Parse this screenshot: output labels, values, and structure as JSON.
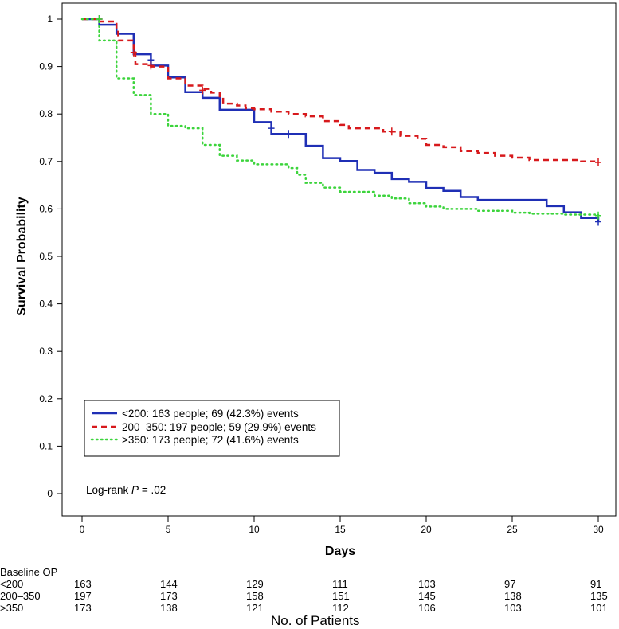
{
  "chart_data": {
    "type": "line",
    "subtype": "kaplan-meier",
    "xlabel": "Days",
    "ylabel": "Survival Probability",
    "xlim": [
      0,
      30
    ],
    "ylim": [
      0,
      1
    ],
    "xticks": [
      0,
      5,
      10,
      15,
      20,
      25,
      30
    ],
    "yticks": [
      0,
      0.1,
      0.2,
      0.3,
      0.4,
      0.5,
      0.6,
      0.7,
      0.8,
      0.9,
      1
    ],
    "legend_position": "lower-left",
    "annotation": {
      "prefix": "Log-rank ",
      "italic": "P",
      "suffix": " = .02"
    },
    "series": [
      {
        "name": "<200: 163 people; 69 (42.3%) events",
        "color": "#1f2fb5",
        "style": "solid",
        "steps": [
          [
            0,
            1
          ],
          [
            1,
            0.988
          ],
          [
            2,
            0.969
          ],
          [
            3,
            0.926
          ],
          [
            4,
            0.902
          ],
          [
            5,
            0.877
          ],
          [
            6,
            0.846
          ],
          [
            7,
            0.834
          ],
          [
            8,
            0.809
          ],
          [
            10,
            0.783
          ],
          [
            11,
            0.758
          ],
          [
            13,
            0.733
          ],
          [
            14,
            0.707
          ],
          [
            15,
            0.701
          ],
          [
            16,
            0.682
          ],
          [
            17,
            0.676
          ],
          [
            18,
            0.663
          ],
          [
            19,
            0.657
          ],
          [
            20,
            0.644
          ],
          [
            21,
            0.638
          ],
          [
            22,
            0.625
          ],
          [
            23,
            0.619
          ],
          [
            27,
            0.606
          ],
          [
            28,
            0.593
          ],
          [
            29,
            0.581
          ],
          [
            30,
            0.573
          ]
        ],
        "censors": [
          [
            1.0,
            1
          ],
          [
            4.0,
            0.914
          ],
          [
            11.0,
            0.77
          ],
          [
            12.0,
            0.758
          ],
          [
            30.0,
            0.573
          ]
        ]
      },
      {
        "name": "200–350: 197 people; 59 (29.9%) events",
        "color": "#d7191c",
        "style": "dashed",
        "steps": [
          [
            0,
            1
          ],
          [
            1,
            0.995
          ],
          [
            2,
            0.98
          ],
          [
            2.1,
            0.955
          ],
          [
            3,
            0.93
          ],
          [
            3.1,
            0.905
          ],
          [
            4,
            0.9
          ],
          [
            5,
            0.875
          ],
          [
            6,
            0.86
          ],
          [
            7,
            0.853
          ],
          [
            7.5,
            0.845
          ],
          [
            8,
            0.835
          ],
          [
            8.2,
            0.822
          ],
          [
            9,
            0.818
          ],
          [
            9.5,
            0.812
          ],
          [
            10,
            0.81
          ],
          [
            11,
            0.805
          ],
          [
            12,
            0.8
          ],
          [
            13,
            0.795
          ],
          [
            14,
            0.785
          ],
          [
            15,
            0.777
          ],
          [
            15.5,
            0.77
          ],
          [
            17.5,
            0.763
          ],
          [
            18.5,
            0.754
          ],
          [
            19.5,
            0.748
          ],
          [
            20,
            0.735
          ],
          [
            21,
            0.73
          ],
          [
            22,
            0.722
          ],
          [
            23,
            0.718
          ],
          [
            24,
            0.712
          ],
          [
            25,
            0.708
          ],
          [
            26,
            0.703
          ],
          [
            28,
            0.703
          ],
          [
            29,
            0.7
          ],
          [
            30,
            0.698
          ]
        ],
        "censors": [
          [
            1.0,
            1
          ],
          [
            3.0,
            0.93
          ],
          [
            4.0,
            0.902
          ],
          [
            7.0,
            0.85
          ],
          [
            18.0,
            0.763
          ],
          [
            30.0,
            0.698
          ]
        ]
      },
      {
        "name": ">350: 173 people; 72 (41.6%) events",
        "color": "#3cd43c",
        "style": "dotted",
        "steps": [
          [
            0,
            1
          ],
          [
            1,
            0.955
          ],
          [
            2,
            0.875
          ],
          [
            3,
            0.84
          ],
          [
            4,
            0.8
          ],
          [
            5,
            0.775
          ],
          [
            6,
            0.77
          ],
          [
            7,
            0.735
          ],
          [
            8,
            0.712
          ],
          [
            9,
            0.702
          ],
          [
            10,
            0.694
          ],
          [
            12,
            0.686
          ],
          [
            12.5,
            0.672
          ],
          [
            13,
            0.655
          ],
          [
            14,
            0.645
          ],
          [
            15,
            0.636
          ],
          [
            17,
            0.628
          ],
          [
            18,
            0.622
          ],
          [
            19,
            0.612
          ],
          [
            20,
            0.605
          ],
          [
            21,
            0.6
          ],
          [
            23,
            0.596
          ],
          [
            25,
            0.592
          ],
          [
            26,
            0.59
          ],
          [
            28,
            0.588
          ],
          [
            30,
            0.586
          ]
        ],
        "censors": [
          [
            1.0,
            1
          ],
          [
            30.0,
            0.586
          ]
        ]
      }
    ]
  },
  "risk_table": {
    "header": "Baseline OP",
    "title": "No. of Patients",
    "rows": [
      {
        "label": "<200",
        "values": [
          "163",
          "144",
          "129",
          "111",
          "103",
          "97",
          "91"
        ]
      },
      {
        "label": "200–350",
        "values": [
          "197",
          "173",
          "158",
          "151",
          "145",
          "138",
          "135"
        ]
      },
      {
        "label": ">350",
        "values": [
          "173",
          "138",
          "121",
          "112",
          "106",
          "103",
          "101"
        ]
      }
    ]
  }
}
